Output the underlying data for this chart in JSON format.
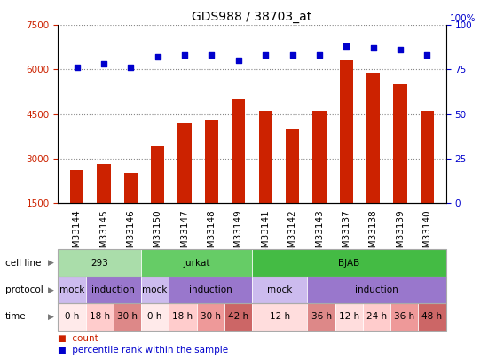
{
  "title": "GDS988 / 38703_at",
  "samples": [
    "GSM33144",
    "GSM33145",
    "GSM33146",
    "GSM33150",
    "GSM33147",
    "GSM33148",
    "GSM33149",
    "GSM33141",
    "GSM33142",
    "GSM33143",
    "GSM33137",
    "GSM33138",
    "GSM33139",
    "GSM33140"
  ],
  "counts": [
    2600,
    2800,
    2500,
    3400,
    4200,
    4300,
    5000,
    4600,
    4000,
    4600,
    6300,
    5900,
    5500,
    4600
  ],
  "percentile_ranks": [
    76,
    78,
    76,
    82,
    83,
    83,
    80,
    83,
    83,
    83,
    88,
    87,
    86,
    83
  ],
  "bar_color": "#cc2200",
  "dot_color": "#0000cc",
  "ylim_left": [
    1500,
    7500
  ],
  "ylim_right": [
    0,
    100
  ],
  "yticks_left": [
    1500,
    3000,
    4500,
    6000,
    7500
  ],
  "yticks_right": [
    0,
    25,
    50,
    75,
    100
  ],
  "grid_color": "#888888",
  "cell_line_data": [
    {
      "label": "293",
      "start": 0,
      "end": 3,
      "color": "#aaddaa"
    },
    {
      "label": "Jurkat",
      "start": 3,
      "end": 7,
      "color": "#66cc66"
    },
    {
      "label": "BJAB",
      "start": 7,
      "end": 14,
      "color": "#44bb44"
    }
  ],
  "protocol_data": [
    {
      "label": "mock",
      "start": 0,
      "end": 1,
      "color": "#ccbbee"
    },
    {
      "label": "induction",
      "start": 1,
      "end": 3,
      "color": "#9977cc"
    },
    {
      "label": "mock",
      "start": 3,
      "end": 4,
      "color": "#ccbbee"
    },
    {
      "label": "induction",
      "start": 4,
      "end": 7,
      "color": "#9977cc"
    },
    {
      "label": "mock",
      "start": 7,
      "end": 9,
      "color": "#ccbbee"
    },
    {
      "label": "induction",
      "start": 9,
      "end": 14,
      "color": "#9977cc"
    }
  ],
  "time_data": [
    {
      "label": "0 h",
      "start": 0,
      "end": 1,
      "color": "#ffeaea"
    },
    {
      "label": "18 h",
      "start": 1,
      "end": 2,
      "color": "#ffcccc"
    },
    {
      "label": "30 h",
      "start": 2,
      "end": 3,
      "color": "#dd8888"
    },
    {
      "label": "0 h",
      "start": 3,
      "end": 4,
      "color": "#ffeaea"
    },
    {
      "label": "18 h",
      "start": 4,
      "end": 5,
      "color": "#ffcccc"
    },
    {
      "label": "30 h",
      "start": 5,
      "end": 6,
      "color": "#ee9999"
    },
    {
      "label": "42 h",
      "start": 6,
      "end": 7,
      "color": "#cc6666"
    },
    {
      "label": "12 h",
      "start": 7,
      "end": 9,
      "color": "#ffdddd"
    },
    {
      "label": "36 h",
      "start": 9,
      "end": 10,
      "color": "#dd8888"
    },
    {
      "label": "12 h",
      "start": 10,
      "end": 11,
      "color": "#ffdddd"
    },
    {
      "label": "24 h",
      "start": 11,
      "end": 12,
      "color": "#ffcccc"
    },
    {
      "label": "36 h",
      "start": 12,
      "end": 13,
      "color": "#ee9999"
    },
    {
      "label": "48 h",
      "start": 13,
      "end": 14,
      "color": "#cc6666"
    }
  ],
  "left_label_color": "#cc2200",
  "right_label_color": "#0000cc",
  "tick_fontsize": 7.5,
  "bar_width": 0.5,
  "background_color": "#ffffff"
}
